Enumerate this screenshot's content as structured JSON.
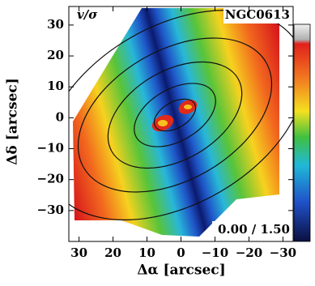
{
  "chart_data": {
    "type": "map",
    "title": "NGC0613",
    "quantity": "v/σ",
    "colorbar_label": "0.00 / 1.50",
    "xlabel": "Δα [arcsec]",
    "ylabel": "Δδ [arcsec]",
    "xlim": [
      33,
      -33
    ],
    "ylim": [
      -40,
      36
    ],
    "xticks": [
      30,
      20,
      10,
      0,
      {
        "value": -10,
        "label": "−10"
      },
      {
        "value": -20,
        "label": "−20"
      },
      {
        "value": -30,
        "label": "−30"
      }
    ],
    "yticks": [
      30,
      20,
      10,
      0,
      {
        "value": -10,
        "label": "−10"
      },
      {
        "value": -20,
        "label": "−20"
      },
      {
        "value": -30,
        "label": "−30"
      }
    ]
  }
}
